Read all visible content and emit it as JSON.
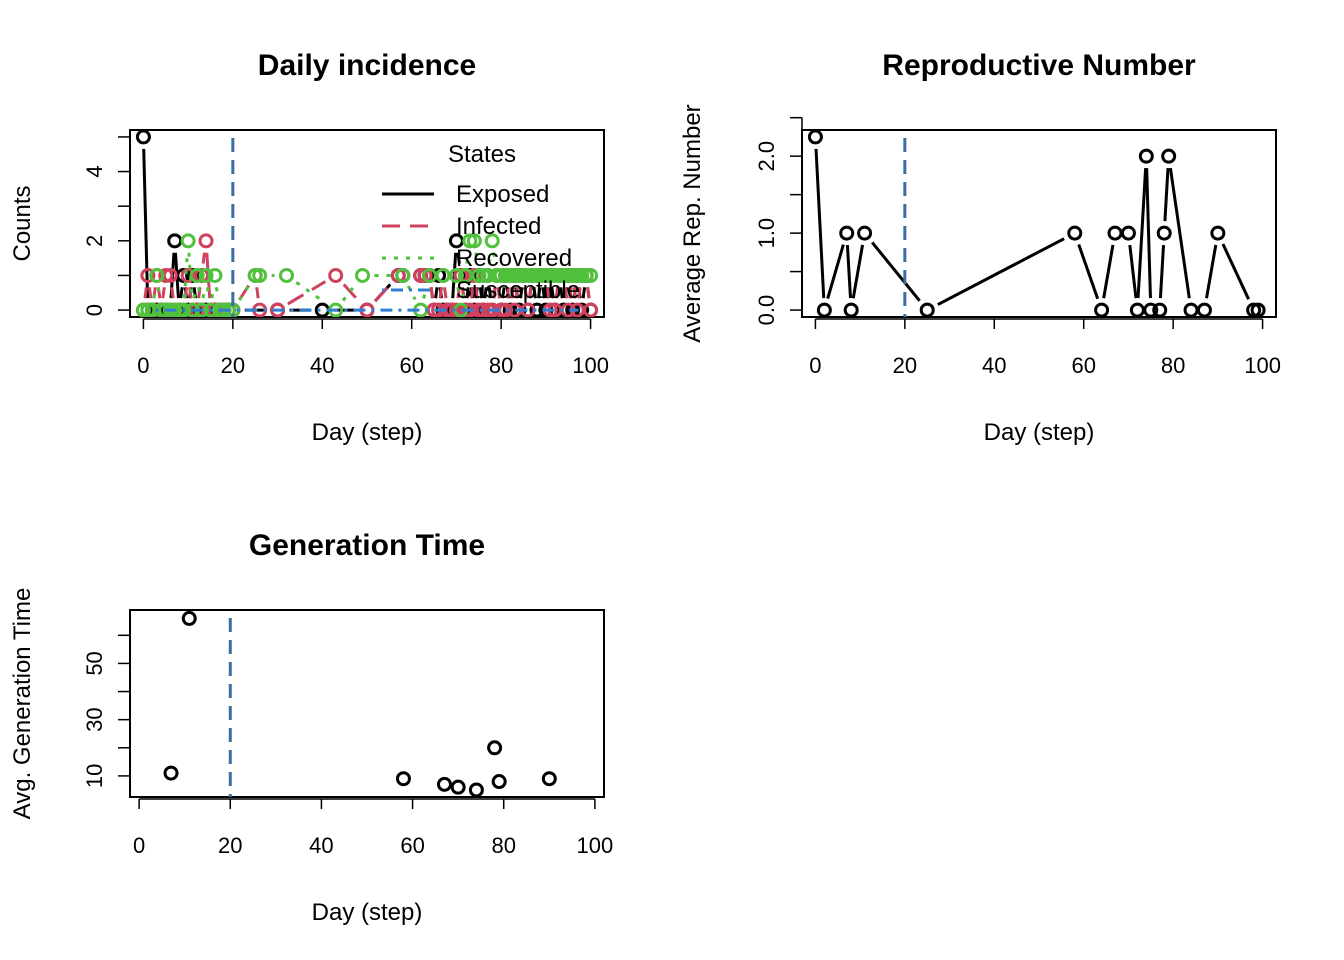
{
  "chart_data": [
    {
      "type": "line",
      "title": "Daily incidence",
      "xlabel": "Day (step)",
      "ylabel": "Counts",
      "xlim": [
        -3,
        103
      ],
      "ylim": [
        -0.2,
        5.2
      ],
      "xticks": [
        "0",
        "20",
        "40",
        "60",
        "80",
        "100"
      ],
      "yticks": [
        "0",
        "2",
        "4"
      ],
      "vline": {
        "x": 20,
        "color": "#3a6ea5"
      },
      "legend": {
        "title": "States",
        "position": "top-right"
      },
      "series": [
        {
          "name": "Exposed",
          "color": "#000000",
          "dash": "solid",
          "x": [
            0,
            1,
            2,
            3,
            4,
            5,
            6,
            7,
            8,
            9,
            10,
            11,
            12,
            13,
            14,
            15,
            16,
            17,
            18,
            19,
            20,
            30,
            40,
            50,
            57,
            58,
            62,
            63,
            64,
            65,
            66,
            67,
            68,
            69,
            70,
            71,
            72,
            73,
            74,
            75,
            76,
            77,
            78,
            79,
            80,
            81,
            82,
            83,
            84,
            85,
            86,
            87,
            88,
            89,
            90,
            91,
            92,
            93,
            94,
            95,
            96,
            97,
            98,
            99,
            100
          ],
          "y": [
            5,
            0,
            0,
            0,
            0,
            0,
            0,
            2,
            0,
            1,
            0,
            1,
            0,
            0,
            0,
            0,
            0,
            0,
            0,
            0,
            0,
            0,
            0,
            0,
            1,
            1,
            1,
            1,
            1,
            0,
            1,
            0,
            0,
            0,
            2,
            1,
            0,
            1,
            0,
            1,
            0,
            1,
            0,
            1,
            0,
            1,
            0,
            1,
            0,
            1,
            0,
            1,
            0,
            1,
            0,
            1,
            0,
            1,
            0,
            1,
            0,
            1,
            0,
            1,
            0
          ]
        },
        {
          "name": "Infected",
          "color": "#d0415e",
          "dash": "dashed",
          "x": [
            0,
            1,
            2,
            3,
            4,
            5,
            6,
            7,
            8,
            9,
            10,
            11,
            12,
            13,
            14,
            15,
            16,
            17,
            18,
            19,
            20,
            25,
            26,
            30,
            43,
            50,
            57,
            62,
            63,
            64,
            65,
            66,
            67,
            68,
            69,
            70,
            71,
            72,
            73,
            74,
            75,
            76,
            77,
            78,
            79,
            80,
            81,
            82,
            83,
            84,
            85,
            86,
            87,
            88,
            89,
            90,
            91,
            92,
            93,
            94,
            95,
            96,
            97,
            98,
            99,
            100
          ],
          "y": [
            0,
            1,
            0,
            1,
            0,
            1,
            1,
            0,
            0,
            0,
            1,
            0,
            0,
            1,
            2,
            0,
            0,
            0,
            0,
            0,
            0,
            1,
            0,
            0,
            1,
            0,
            1,
            1,
            1,
            1,
            0,
            0,
            1,
            0,
            0,
            0,
            1,
            0,
            0,
            1,
            0,
            0,
            0,
            0,
            1,
            0,
            0,
            1,
            0,
            1,
            1,
            0,
            1,
            1,
            1,
            1,
            0,
            0,
            1,
            1,
            0,
            1,
            0,
            1,
            1,
            0
          ]
        },
        {
          "name": "Recovered",
          "color": "#4fc13c",
          "dash": "dotted",
          "x": [
            0,
            1,
            2,
            3,
            4,
            5,
            6,
            7,
            8,
            9,
            10,
            11,
            12,
            13,
            14,
            15,
            16,
            17,
            18,
            19,
            20,
            25,
            26,
            32,
            43,
            49,
            58,
            62,
            64,
            67,
            70,
            71,
            72,
            73,
            74,
            75,
            76,
            77,
            78,
            79,
            80,
            81,
            82,
            83,
            84,
            85,
            86,
            87,
            88,
            89,
            90,
            91,
            92,
            93,
            94,
            95,
            96,
            97,
            98,
            99,
            100
          ],
          "y": [
            0,
            0,
            0,
            1,
            0,
            0,
            0,
            0,
            0,
            0,
            2,
            0,
            1,
            0,
            1,
            0,
            1,
            0,
            0,
            0,
            0,
            1,
            1,
            1,
            0,
            1,
            1,
            0,
            1,
            1,
            1,
            0,
            1,
            2,
            2,
            1,
            1,
            1,
            2,
            1,
            1,
            1,
            1,
            1,
            1,
            1,
            1,
            1,
            1,
            1,
            1,
            1,
            1,
            1,
            1,
            1,
            1,
            1,
            1,
            1,
            1
          ]
        },
        {
          "name": "Susceptible",
          "color": "#2e7fd1",
          "dash": "dotdash",
          "x": [
            0,
            100
          ],
          "y": [
            0,
            0
          ]
        }
      ]
    },
    {
      "type": "line",
      "title": "Reproductive Number",
      "xlabel": "Day (step)",
      "ylabel": "Average Rep. Number",
      "xlim": [
        -3,
        103
      ],
      "ylim": [
        -0.09,
        2.34
      ],
      "xticks": [
        "0",
        "20",
        "40",
        "60",
        "80",
        "100"
      ],
      "yticks": [
        "0.0",
        "1.0",
        "2.0"
      ],
      "vline": {
        "x": 20,
        "color": "#3a6ea5"
      },
      "series": [
        {
          "color": "#000000",
          "x": [
            0,
            2,
            7,
            8,
            11,
            25,
            58,
            64,
            67,
            70,
            72,
            74,
            75,
            77,
            78,
            79,
            84,
            87,
            90,
            98,
            99
          ],
          "y": [
            2.25,
            0,
            1,
            0,
            1,
            0,
            1,
            0,
            1,
            1,
            0,
            2,
            0,
            0,
            1,
            2,
            0,
            0,
            1,
            0,
            0
          ]
        }
      ]
    },
    {
      "type": "scatter",
      "title": "Generation Time",
      "xlabel": "Day (step)",
      "ylabel": "Avg. Generation Time",
      "xlim": [
        -2,
        102
      ],
      "ylim": [
        2.5,
        69
      ],
      "xticks": [
        "0",
        "20",
        "40",
        "60",
        "80",
        "100"
      ],
      "yticks": [
        "10",
        "30",
        "50"
      ],
      "vline": {
        "x": 20,
        "color": "#3a6ea5"
      },
      "series": [
        {
          "color": "#000000",
          "x": [
            7,
            11,
            58,
            67,
            70,
            74,
            78,
            79,
            90
          ],
          "y": [
            11,
            66,
            9,
            7,
            6,
            5,
            20,
            8,
            9
          ]
        }
      ]
    }
  ]
}
